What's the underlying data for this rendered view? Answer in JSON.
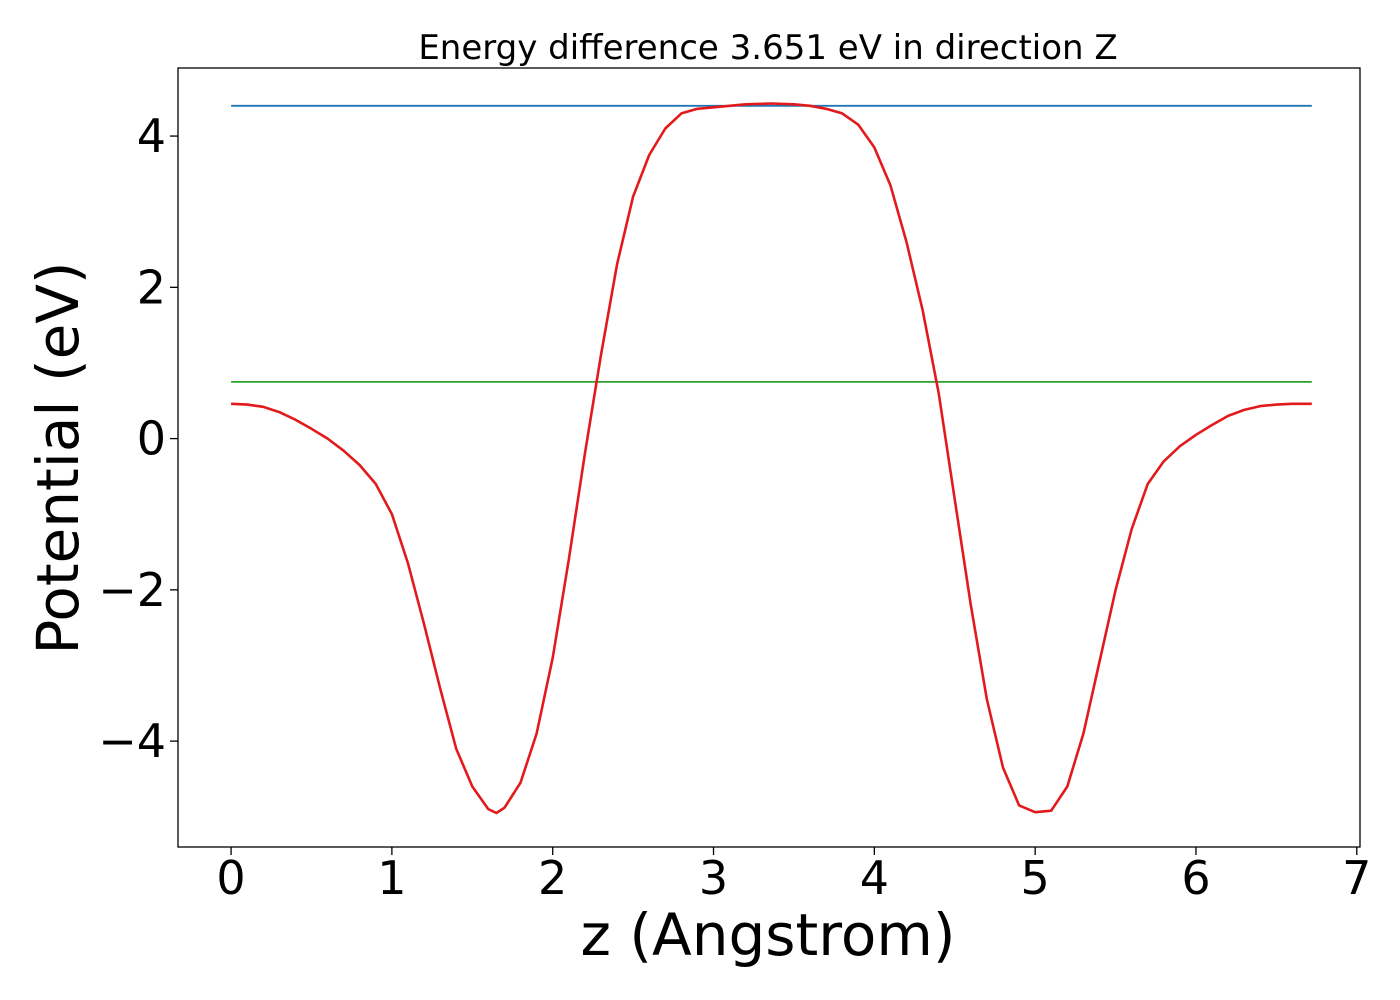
{
  "chart_data": {
    "type": "line",
    "title": "Energy difference 3.651 eV in direction Z",
    "xlabel": "z (Angstrom)",
    "ylabel": "Potential (eV)",
    "xlim": [
      -0.33,
      7.02
    ],
    "ylim": [
      -5.4,
      4.9
    ],
    "xticks": [
      0,
      1,
      2,
      3,
      4,
      5,
      6,
      7
    ],
    "xtick_labels": [
      "0",
      "1",
      "2",
      "3",
      "4",
      "5",
      "6",
      "7"
    ],
    "yticks": [
      -4,
      -2,
      0,
      2,
      4
    ],
    "ytick_labels": [
      "−4",
      "−2",
      "0",
      "2",
      "4"
    ],
    "grid": false,
    "series": [
      {
        "color": "#1f77b4",
        "x": [
          0,
          6.72
        ],
        "y": [
          4.4,
          4.4
        ]
      },
      {
        "color": "#2ca02c",
        "x": [
          0,
          6.72
        ],
        "y": [
          0.75,
          0.75
        ]
      },
      {
        "color": "#e31a1c",
        "x": [
          0,
          0.1,
          0.2,
          0.3,
          0.4,
          0.5,
          0.6,
          0.7,
          0.8,
          0.9,
          1.0,
          1.1,
          1.2,
          1.3,
          1.4,
          1.5,
          1.6,
          1.65,
          1.7,
          1.8,
          1.9,
          2.0,
          2.1,
          2.2,
          2.3,
          2.4,
          2.5,
          2.6,
          2.7,
          2.8,
          2.9,
          3.0,
          3.1,
          3.2,
          3.36,
          3.5,
          3.6,
          3.7,
          3.8,
          3.9,
          4.0,
          4.1,
          4.2,
          4.3,
          4.4,
          4.5,
          4.6,
          4.7,
          4.8,
          4.9,
          5.0,
          5.1,
          5.2,
          5.3,
          5.4,
          5.5,
          5.6,
          5.7,
          5.8,
          5.9,
          6.0,
          6.1,
          6.2,
          6.3,
          6.4,
          6.5,
          6.6,
          6.72
        ],
        "y": [
          0.46,
          0.45,
          0.42,
          0.35,
          0.25,
          0.13,
          0.0,
          -0.16,
          -0.35,
          -0.6,
          -1.0,
          -1.65,
          -2.45,
          -3.3,
          -4.1,
          -4.6,
          -4.9,
          -4.95,
          -4.88,
          -4.55,
          -3.9,
          -2.9,
          -1.6,
          -0.2,
          1.1,
          2.3,
          3.2,
          3.75,
          4.1,
          4.3,
          4.36,
          4.38,
          4.4,
          4.42,
          4.43,
          4.42,
          4.4,
          4.36,
          4.3,
          4.15,
          3.85,
          3.35,
          2.6,
          1.7,
          0.6,
          -0.8,
          -2.2,
          -3.45,
          -4.35,
          -4.85,
          -4.94,
          -4.92,
          -4.6,
          -3.9,
          -2.95,
          -2.0,
          -1.2,
          -0.6,
          -0.3,
          -0.1,
          0.05,
          0.18,
          0.3,
          0.38,
          0.43,
          0.45,
          0.46,
          0.46
        ]
      }
    ]
  }
}
